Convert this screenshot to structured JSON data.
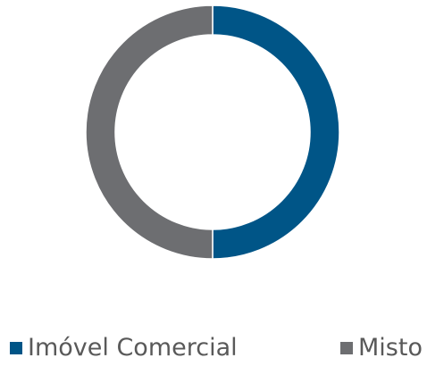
{
  "chart_data": {
    "type": "pie",
    "variant": "donut",
    "categories": [
      "Imóvel Comercial",
      "Misto"
    ],
    "values": [
      50,
      50
    ],
    "colors": [
      "#005587",
      "#6D6E71"
    ],
    "title": "",
    "legend_position": "bottom"
  }
}
